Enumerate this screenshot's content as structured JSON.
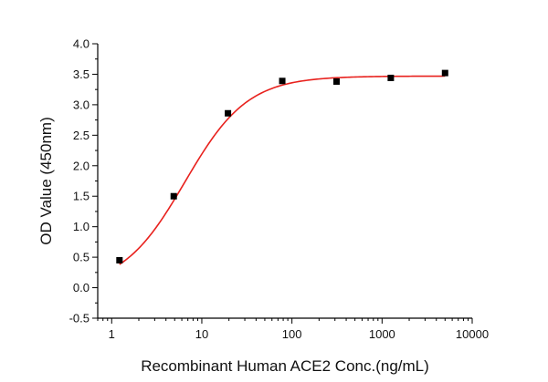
{
  "chart_data": {
    "type": "scatter",
    "title": "",
    "xlabel": "Recombinant Human ACE2 Conc.(ng/mL)",
    "ylabel": "OD Value (450nm)",
    "xscale": "log",
    "xlim": [
      0.7,
      10000
    ],
    "ylim": [
      -0.5,
      4.0
    ],
    "x_ticks": [
      1,
      10,
      100,
      1000,
      10000
    ],
    "x_tick_labels": [
      "1",
      "10",
      "100",
      "1000",
      "10000"
    ],
    "y_ticks": [
      -0.5,
      0.0,
      0.5,
      1.0,
      1.5,
      2.0,
      2.5,
      3.0,
      3.5,
      4.0
    ],
    "y_tick_labels": [
      "-0.5",
      "0.0",
      "0.5",
      "1.0",
      "1.5",
      "2.0",
      "2.5",
      "3.0",
      "3.5",
      "4.0"
    ],
    "grid": false,
    "legend": "none",
    "colors": {
      "points": "#000000",
      "fit": "#e8211d",
      "axis": "#000000"
    },
    "series": [
      {
        "values": [
          {
            "x": 1.22,
            "y": 0.45
          },
          {
            "x": 4.88,
            "y": 1.5
          },
          {
            "x": 19.5,
            "y": 2.86
          },
          {
            "x": 78.1,
            "y": 3.39
          },
          {
            "x": 312.5,
            "y": 3.38
          },
          {
            "x": 1250,
            "y": 3.44
          },
          {
            "x": 5000,
            "y": 3.52
          }
        ]
      }
    ],
    "fit": {
      "model": "4PL",
      "bottom": 0.0,
      "top": 3.47,
      "ec50": 6.5,
      "hill": 1.25,
      "x_range": [
        1.22,
        5000
      ]
    }
  }
}
